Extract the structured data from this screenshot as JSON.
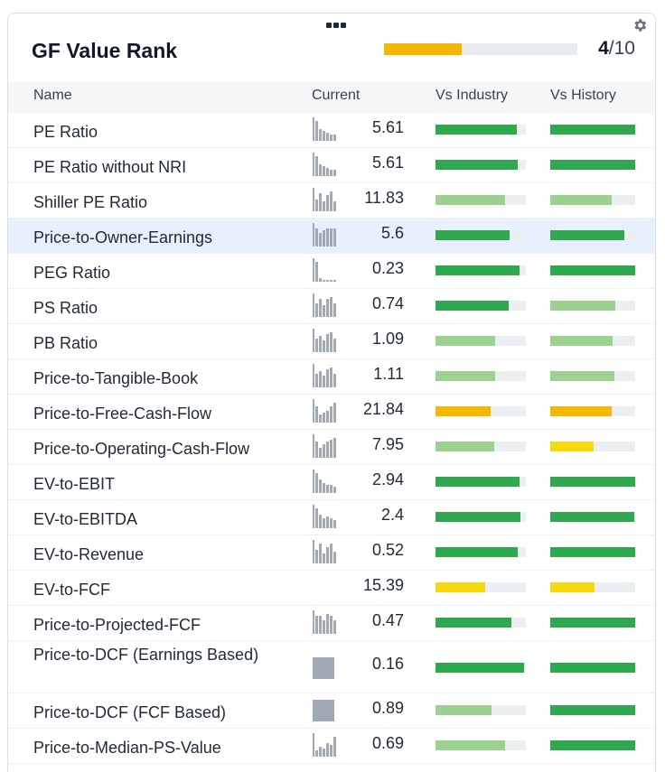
{
  "header": {
    "title": "GF Value Rank",
    "rank_value": "4",
    "rank_total": "/10",
    "rank_fraction": 0.4,
    "rank_color": "#f5b800"
  },
  "columns": {
    "name": "Name",
    "current": "Current",
    "vs_industry": "Vs Industry",
    "vs_history": "Vs History"
  },
  "colors": {
    "dark_green": "#2fa84f",
    "light_green": "#9dd190",
    "orange": "#f5b800",
    "yellow": "#f5d90a",
    "track": "#eceff2",
    "highlight_row": "#e8f0fe"
  },
  "rows": [
    {
      "name": "PE Ratio",
      "current": "5.61",
      "spark": [
        10,
        6,
        5,
        4,
        3,
        3
      ],
      "industry": 0.9,
      "industry_color": "#2fa84f",
      "history": 1.0,
      "history_color": "#2fa84f"
    },
    {
      "name": "PE Ratio without NRI",
      "current": "5.61",
      "spark": [
        10,
        6,
        5,
        4,
        3,
        3
      ],
      "industry": 0.91,
      "industry_color": "#2fa84f",
      "history": 1.0,
      "history_color": "#2fa84f"
    },
    {
      "name": "Shiller PE Ratio",
      "current": "11.83",
      "spark": [
        6,
        9,
        5,
        8,
        10,
        5
      ],
      "industry": 0.77,
      "industry_color": "#9dd190",
      "history": 0.72,
      "history_color": "#9dd190"
    },
    {
      "name": "Price-to-Owner-Earnings",
      "current": "5.6",
      "spark": [
        9,
        7,
        8,
        9,
        9,
        9
      ],
      "industry": 0.82,
      "industry_color": "#2fa84f",
      "history": 0.87,
      "history_color": "#2fa84f",
      "highlight": true
    },
    {
      "name": "PEG Ratio",
      "current": "0.23",
      "spark": [
        10,
        2,
        1,
        1,
        1,
        1
      ],
      "industry": 0.93,
      "industry_color": "#2fa84f",
      "history": 1.0,
      "history_color": "#2fa84f"
    },
    {
      "name": "PS Ratio",
      "current": "0.74",
      "spark": [
        7,
        9,
        6,
        9,
        10,
        7
      ],
      "industry": 0.81,
      "industry_color": "#2fa84f",
      "history": 0.77,
      "history_color": "#9dd190"
    },
    {
      "name": "PB Ratio",
      "current": "1.09",
      "spark": [
        7,
        8,
        6,
        9,
        10,
        7
      ],
      "industry": 0.66,
      "industry_color": "#9dd190",
      "history": 0.73,
      "history_color": "#9dd190"
    },
    {
      "name": "Price-to-Tangible-Book",
      "current": "1.11",
      "spark": [
        7,
        8,
        6,
        9,
        10,
        7
      ],
      "industry": 0.66,
      "industry_color": "#9dd190",
      "history": 0.75,
      "history_color": "#9dd190"
    },
    {
      "name": "Price-to-Free-Cash-Flow",
      "current": "21.84",
      "spark": [
        8,
        4,
        5,
        6,
        8,
        10
      ],
      "industry": 0.61,
      "industry_color": "#f5b800",
      "history": 0.72,
      "history_color": "#f5b800"
    },
    {
      "name": "Price-to-Operating-Cash-Flow",
      "current": "7.95",
      "spark": [
        8,
        5,
        7,
        8,
        9,
        10
      ],
      "industry": 0.65,
      "industry_color": "#9dd190",
      "history": 0.51,
      "history_color": "#f5d90a"
    },
    {
      "name": "EV-to-EBIT",
      "current": "2.94",
      "spark": [
        10,
        7,
        5,
        4,
        4,
        3
      ],
      "industry": 0.93,
      "industry_color": "#2fa84f",
      "history": 1.0,
      "history_color": "#2fa84f"
    },
    {
      "name": "EV-to-EBITDA",
      "current": "2.4",
      "spark": [
        10,
        7,
        5,
        6,
        5,
        4
      ],
      "industry": 0.94,
      "industry_color": "#2fa84f",
      "history": 0.99,
      "history_color": "#2fa84f"
    },
    {
      "name": "EV-to-Revenue",
      "current": "0.52",
      "spark": [
        7,
        10,
        5,
        8,
        10,
        6
      ],
      "industry": 0.91,
      "industry_color": "#2fa84f",
      "history": 1.0,
      "history_color": "#2fa84f"
    },
    {
      "name": "EV-to-FCF",
      "current": "15.39",
      "spark": [],
      "industry": 0.55,
      "industry_color": "#f5d90a",
      "history": 0.52,
      "history_color": "#f5d90a"
    },
    {
      "name": "Price-to-Projected-FCF",
      "current": "0.47",
      "spark": [
        9,
        9,
        7,
        10,
        9,
        7
      ],
      "industry": 0.84,
      "industry_color": "#2fa84f",
      "history": 1.0,
      "history_color": "#2fa84f"
    },
    {
      "name": "Price-to-DCF (Earnings Based)",
      "current": "0.16",
      "spark_block": true,
      "industry": 0.98,
      "industry_color": "#2fa84f",
      "history": 1.0,
      "history_color": "#2fa84f",
      "tall": true
    },
    {
      "name": "Price-to-DCF (FCF Based)",
      "current": "0.89",
      "spark_block": true,
      "industry": 0.62,
      "industry_color": "#9dd190",
      "history": 1.0,
      "history_color": "#2fa84f"
    },
    {
      "name": "Price-to-Median-PS-Value",
      "current": "0.69",
      "spark": [
        3,
        5,
        4,
        7,
        6,
        10
      ],
      "industry": 0.77,
      "industry_color": "#9dd190",
      "history": 1.0,
      "history_color": "#2fa84f"
    }
  ]
}
